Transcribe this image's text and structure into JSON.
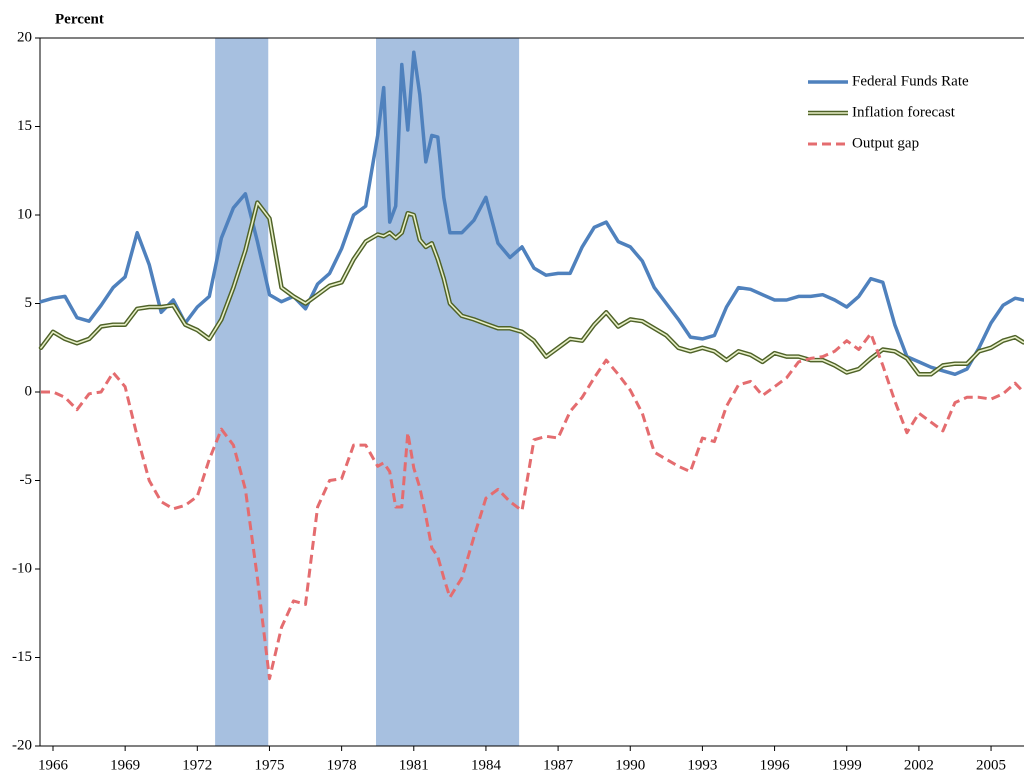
{
  "chart_data": {
    "type": "line",
    "title": "Percent",
    "x": [
      1965.5,
      1966,
      1966.5,
      1967,
      1967.5,
      1968,
      1968.5,
      1969,
      1969.5,
      1970,
      1970.5,
      1971,
      1971.5,
      1972,
      1972.5,
      1973,
      1973.5,
      1974,
      1974.5,
      1975,
      1975.5,
      1976,
      1976.5,
      1977,
      1977.5,
      1978,
      1978.5,
      1979,
      1979.5,
      1979.75,
      1980,
      1980.25,
      1980.5,
      1980.75,
      1981,
      1981.25,
      1981.5,
      1981.75,
      1982,
      1982.25,
      1982.5,
      1983,
      1983.5,
      1984,
      1984.5,
      1985,
      1985.5,
      1986,
      1986.5,
      1987,
      1987.5,
      1988,
      1988.5,
      1989,
      1989.5,
      1990,
      1990.5,
      1991,
      1991.5,
      1992,
      1992.5,
      1993,
      1993.5,
      1994,
      1994.5,
      1995,
      1995.5,
      1996,
      1996.5,
      1997,
      1997.5,
      1998,
      1998.5,
      1999,
      1999.5,
      2000,
      2000.5,
      2001,
      2001.5,
      2002,
      2002.5,
      2003,
      2003.5,
      2004,
      2004.5,
      2005,
      2005.5,
      2006,
      2006.35
    ],
    "series": [
      {
        "name": "Federal Funds Rate",
        "color": "#4f81bd",
        "style": "solid",
        "values": [
          5.1,
          5.3,
          5.4,
          4.2,
          4.0,
          4.9,
          5.9,
          6.5,
          9.0,
          7.2,
          4.5,
          5.2,
          3.9,
          4.8,
          5.4,
          8.7,
          10.4,
          11.2,
          8.5,
          5.5,
          5.1,
          5.4,
          4.7,
          6.1,
          6.7,
          8.1,
          10.0,
          10.5,
          14.5,
          17.2,
          9.6,
          10.5,
          18.5,
          14.8,
          19.2,
          16.8,
          13.0,
          14.5,
          14.4,
          11.0,
          9.0,
          9.0,
          9.7,
          11.0,
          8.4,
          7.6,
          8.2,
          7.0,
          6.6,
          6.7,
          6.7,
          8.2,
          9.3,
          9.6,
          8.5,
          8.2,
          7.4,
          5.9,
          5.0,
          4.1,
          3.1,
          3.0,
          3.2,
          4.8,
          5.9,
          5.8,
          5.5,
          5.2,
          5.2,
          5.4,
          5.4,
          5.5,
          5.2,
          4.8,
          5.4,
          6.4,
          6.2,
          3.8,
          2.0,
          1.7,
          1.4,
          1.2,
          1.0,
          1.3,
          2.5,
          3.9,
          4.9,
          5.3,
          5.2
        ]
      },
      {
        "name": "Inflation forecast",
        "color": "#4f6228",
        "style": "double",
        "values": [
          2.5,
          3.4,
          3.0,
          2.75,
          3.0,
          3.7,
          3.8,
          3.8,
          4.7,
          4.8,
          4.8,
          4.9,
          3.8,
          3.5,
          3.0,
          4.1,
          5.9,
          8.0,
          10.7,
          9.8,
          5.9,
          5.4,
          5.0,
          5.5,
          6.0,
          6.2,
          7.5,
          8.5,
          8.9,
          8.8,
          9.0,
          8.7,
          9.0,
          10.1,
          10.0,
          8.6,
          8.2,
          8.4,
          7.5,
          6.4,
          5.0,
          4.3,
          4.1,
          3.85,
          3.6,
          3.6,
          3.4,
          2.9,
          2.0,
          2.5,
          3.0,
          2.9,
          3.8,
          4.5,
          3.7,
          4.1,
          4.0,
          3.6,
          3.2,
          2.5,
          2.3,
          2.5,
          2.3,
          1.8,
          2.3,
          2.1,
          1.7,
          2.2,
          2.0,
          2.0,
          1.8,
          1.8,
          1.5,
          1.1,
          1.3,
          1.9,
          2.4,
          2.3,
          1.9,
          1.0,
          1.0,
          1.5,
          1.6,
          1.6,
          2.3,
          2.5,
          2.9,
          3.1,
          2.8
        ]
      },
      {
        "name": "Output gap",
        "color": "#e46c6f",
        "style": "dashed",
        "values": [
          0.0,
          0.0,
          -0.3,
          -1.0,
          -0.1,
          0.0,
          1.1,
          0.3,
          -2.5,
          -5.0,
          -6.2,
          -6.6,
          -6.4,
          -5.9,
          -3.8,
          -2.1,
          -3.0,
          -5.5,
          -10.5,
          -16.2,
          -13.3,
          -11.8,
          -12.0,
          -6.5,
          -5.0,
          -4.9,
          -3.0,
          -3.0,
          -4.2,
          -4.0,
          -4.5,
          -6.5,
          -6.5,
          -2.3,
          -4.3,
          -5.4,
          -7.0,
          -8.8,
          -9.3,
          -10.5,
          -11.6,
          -10.5,
          -8.2,
          -6.0,
          -5.5,
          -6.2,
          -6.7,
          -2.7,
          -2.5,
          -2.6,
          -1.1,
          -0.3,
          0.8,
          1.8,
          1.0,
          0.1,
          -1.2,
          -3.4,
          -3.8,
          -4.2,
          -4.5,
          -2.6,
          -2.8,
          -0.8,
          0.4,
          0.6,
          -0.2,
          0.3,
          0.8,
          1.7,
          1.9,
          2.0,
          2.3,
          2.9,
          2.4,
          3.3,
          1.5,
          -0.5,
          -2.3,
          -1.2,
          -1.7,
          -2.2,
          -0.6,
          -0.3,
          -0.3,
          -0.4,
          -0.1,
          0.5,
          0.0
        ]
      }
    ],
    "shaded_periods": [
      [
        1972.74,
        1974.95
      ],
      [
        1979.43,
        1985.38
      ]
    ],
    "shading_color": "#a7c0e0",
    "xlim": [
      1965.46,
      2006.37
    ],
    "xticks": [
      1966,
      1969,
      1972,
      1975,
      1978,
      1981,
      1984,
      1987,
      1990,
      1993,
      1996,
      1999,
      2002,
      2005
    ],
    "ylim": [
      -20,
      20
    ],
    "yticks": [
      -20,
      -15,
      -10,
      -5,
      0,
      5,
      10,
      15,
      20
    ],
    "legend": "upper right",
    "grid": false
  }
}
